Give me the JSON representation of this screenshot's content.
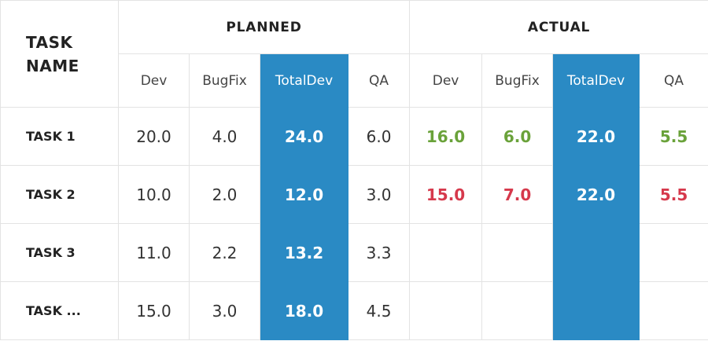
{
  "header": {
    "task_name_line1": "TASK",
    "task_name_line2": "NAME",
    "planned": "PLANNED",
    "actual": "ACTUAL",
    "columns": [
      "Dev",
      "BugFix",
      "TotalDev",
      "QA"
    ]
  },
  "colors": {
    "highlight": "#2a8ac4",
    "under_estimate": "#6aa23a",
    "over_estimate": "#d6394c"
  },
  "rows": [
    {
      "name": "TASK 1",
      "planned": {
        "dev": "20.0",
        "bugfix": "4.0",
        "totaldev": "24.0",
        "qa": "6.0"
      },
      "actual": {
        "dev": "16.0",
        "bugfix": "6.0",
        "totaldev": "22.0",
        "qa": "5.5"
      }
    },
    {
      "name": "TASK 2",
      "planned": {
        "dev": "10.0",
        "bugfix": "2.0",
        "totaldev": "12.0",
        "qa": "3.0"
      },
      "actual": {
        "dev": "15.0",
        "bugfix": "7.0",
        "totaldev": "22.0",
        "qa": "5.5"
      }
    },
    {
      "name": "TASK 3",
      "planned": {
        "dev": "11.0",
        "bugfix": "2.2",
        "totaldev": "13.2",
        "qa": "3.3"
      },
      "actual": {
        "dev": "",
        "bugfix": "",
        "totaldev": "",
        "qa": ""
      }
    },
    {
      "name": "TASK ...",
      "planned": {
        "dev": "15.0",
        "bugfix": "3.0",
        "totaldev": "18.0",
        "qa": "4.5"
      },
      "actual": {
        "dev": "",
        "bugfix": "",
        "totaldev": "",
        "qa": ""
      }
    }
  ]
}
